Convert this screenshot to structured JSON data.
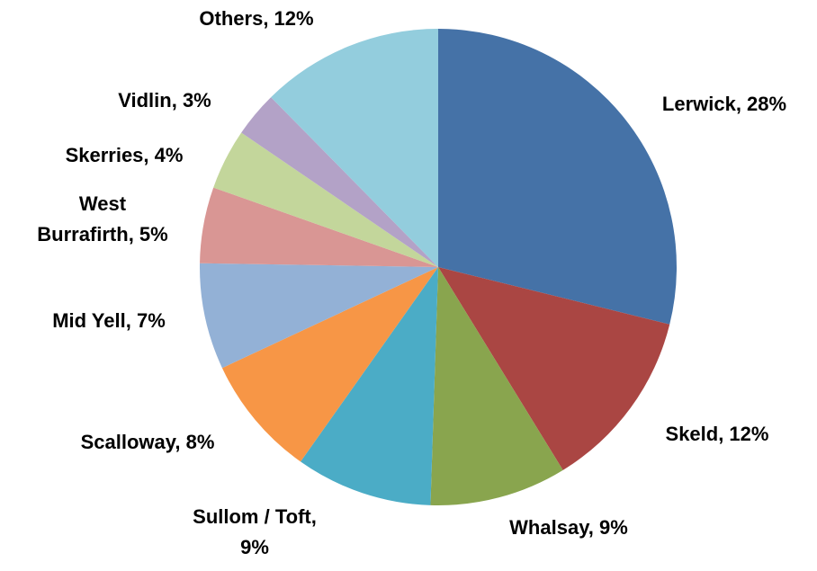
{
  "chart_data": {
    "type": "pie",
    "categories": [
      "Lerwick",
      "Skeld",
      "Whalsay",
      "Sullom / Toft",
      "Scalloway",
      "Mid Yell",
      "West Burrafirth",
      "Skerries",
      "Vidlin",
      "Others"
    ],
    "values": [
      28,
      12,
      9,
      9,
      8,
      7,
      5,
      4,
      3,
      12
    ],
    "value_labels": [
      "Lerwick, 28%",
      "Skeld, 12%",
      "Whalsay, 9%",
      [
        "Sullom / Toft,",
        "9%"
      ],
      "Scalloway, 8%",
      "Mid Yell, 7%",
      [
        "West",
        "Burrafirth, 5%"
      ],
      "Skerries, 4%",
      "Vidlin, 3%",
      "Others, 12%"
    ],
    "colors": [
      "#4572a7",
      "#aa4643",
      "#89a54e",
      "#4bacc6",
      "#f79646",
      "#93b1d6",
      "#d99694",
      "#c3d69b",
      "#b3a2c7",
      "#93cddd"
    ],
    "start_angle": 0,
    "direction": "clockwise"
  }
}
